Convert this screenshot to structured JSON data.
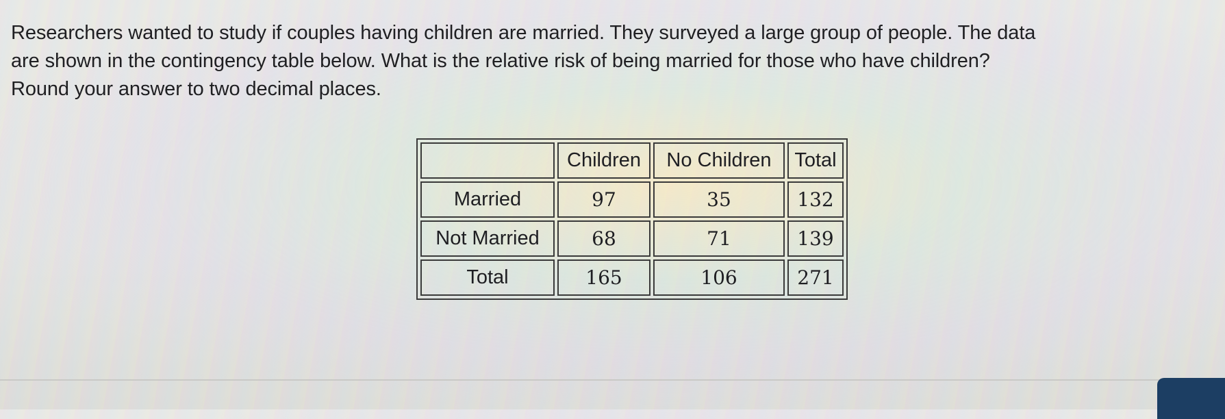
{
  "question": {
    "lines": [
      "Researchers wanted to study if couples having children are married. They surveyed a large group of people. The data",
      "are shown in the contingency table below. What is the relative risk of being married for those who have children?",
      "Round your answer to two decimal places."
    ]
  },
  "table": {
    "headers": [
      "",
      "Children",
      "No Children",
      "Total"
    ],
    "rows": [
      {
        "label": "Married",
        "values": [
          "97",
          "35",
          "132"
        ]
      },
      {
        "label": "Not Married",
        "values": [
          "68",
          "71",
          "139"
        ]
      },
      {
        "label": "Total",
        "values": [
          "165",
          "106",
          "271"
        ]
      }
    ]
  },
  "colors": {
    "text": "#1f1f22",
    "table_border": "#3a3a3a",
    "button": "#1c3e63"
  }
}
